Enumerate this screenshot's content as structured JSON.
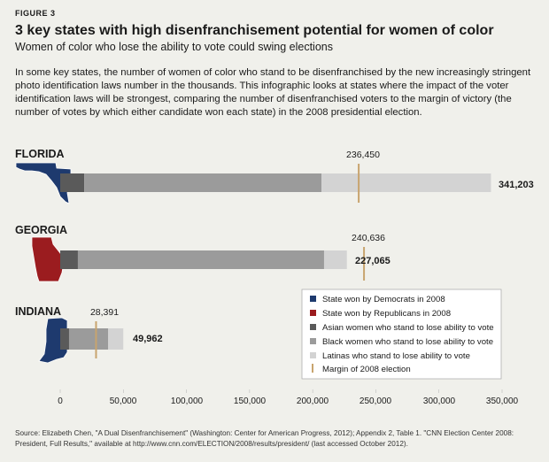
{
  "figure_label": "FIGURE 3",
  "title": "3 key states with high disenfranchisement potential for women of color",
  "subtitle": "Women of color who lose the ability to vote could swing elections",
  "intro": "In some key states, the number of women of color who stand to be disenfranchised by the new increasingly stringent photo identification laws number in the thousands. This infographic looks at states where the impact of the voter identification laws will be strongest, comparing the number of disenfranchised voters to the margin of victory (the number of votes by which either candidate won each state) in the 2008 presidential election.",
  "source": "Source: Elizabeth Chen, \"A Dual Disenfranchisement\" (Washington: Center for American Progress, 2012); Appendix 2, Table 1. \"CNN Election Center 2008: President, Full Results,\" available at http://www.cnn.com/ELECTION/2008/results/president/ (last accessed October 2012).",
  "colors": {
    "democrat": "#1e3a6e",
    "republican": "#9b1c1f",
    "asian": "#5a5a5a",
    "black": "#9b9b9b",
    "latina": "#d3d3d3",
    "margin": "#c8a46e"
  },
  "chart_data": {
    "type": "bar",
    "orientation": "horizontal",
    "stacked": true,
    "xlim": [
      0,
      350000
    ],
    "ticks": [
      0,
      50000,
      100000,
      150000,
      200000,
      250000,
      300000,
      350000
    ],
    "tick_labels": [
      "0",
      "50,000",
      "100,000",
      "150,000",
      "200,000",
      "250,000",
      "300,000",
      "350,000"
    ],
    "states": [
      {
        "name": "FLORIDA",
        "won_by": "democrat",
        "asian": 19000,
        "black": 188000,
        "latina": 134203,
        "total": 341203,
        "total_label": "341,203",
        "margin": 236450,
        "margin_label": "236,450"
      },
      {
        "name": "GEORGIA",
        "won_by": "republican",
        "asian": 14000,
        "black": 195000,
        "latina": 18065,
        "total": 227065,
        "total_label": "227,065",
        "margin": 240636,
        "margin_label": "240,636"
      },
      {
        "name": "INDIANA",
        "won_by": "democrat",
        "asian": 7000,
        "black": 31000,
        "latina": 11962,
        "total": 49962,
        "total_label": "49,962",
        "margin": 28391,
        "margin_label": "28,391"
      }
    ],
    "legend": [
      {
        "key": "democrat",
        "label": "State won by Democrats in 2008"
      },
      {
        "key": "republican",
        "label": "State won by Republicans in 2008"
      },
      {
        "key": "asian",
        "label": "Asian women who stand to lose ability to vote"
      },
      {
        "key": "black",
        "label": "Black women who stand to lose ability to vote"
      },
      {
        "key": "latina",
        "label": "Latinas who stand to lose ability to vote"
      },
      {
        "key": "margin",
        "label": "Margin of 2008 election"
      }
    ]
  }
}
